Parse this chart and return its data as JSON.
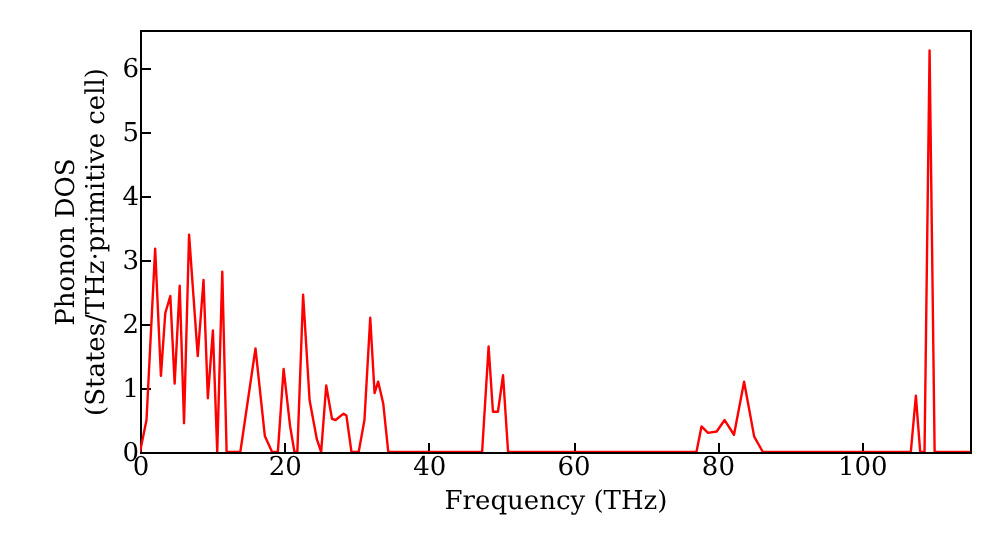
{
  "chart_data": {
    "type": "line",
    "xlabel": "Frequency (THz)",
    "ylabel": "Phonon DOS\n(States/THz·primitive cell)",
    "xlim": [
      0,
      115
    ],
    "ylim": [
      0,
      6.6
    ],
    "xticks": [
      0,
      20,
      40,
      60,
      80,
      100
    ],
    "yticks": [
      0,
      1,
      2,
      3,
      4,
      5,
      6
    ],
    "grid": false,
    "line_style": "solid",
    "series": [
      {
        "color": "#ff0000",
        "x": [
          0,
          0.9,
          2.1,
          2.9,
          3.5,
          4.2,
          4.8,
          5.5,
          6.1,
          6.8,
          8.0,
          8.8,
          9.4,
          10.1,
          10.7,
          11.4,
          12.0,
          13.9,
          16.0,
          17.3,
          18.3,
          19.1,
          19.9,
          20.8,
          21.4,
          21.8,
          22.6,
          23.5,
          24.5,
          25.1,
          25.8,
          26.6,
          27.1,
          28.2,
          28.6,
          29.3,
          30.3,
          31.1,
          31.9,
          32.5,
          33.0,
          33.7,
          34.4,
          47.4,
          48.3,
          48.9,
          49.6,
          50.3,
          51.0,
          77.1,
          77.8,
          78.7,
          79.9,
          81.0,
          82.3,
          83.7,
          85.1,
          86.3,
          106.8,
          107.5,
          108.1,
          108.7,
          109.4,
          110.1,
          115
        ],
        "values": [
          0,
          0.5,
          3.18,
          1.19,
          2.17,
          2.44,
          1.07,
          2.6,
          0.45,
          3.4,
          1.5,
          2.69,
          0.84,
          1.9,
          0,
          2.82,
          0,
          0,
          1.62,
          0.25,
          0,
          0,
          1.3,
          0.4,
          0,
          0,
          2.46,
          0.81,
          0.2,
          0,
          1.04,
          0.52,
          0.5,
          0.6,
          0.57,
          0,
          0,
          0.5,
          2.1,
          0.92,
          1.1,
          0.76,
          0,
          0,
          1.65,
          0.63,
          0.63,
          1.2,
          0,
          0,
          0.4,
          0.3,
          0.32,
          0.5,
          0.27,
          1.1,
          0.24,
          0,
          0,
          0.88,
          0,
          0,
          6.28,
          0,
          0
        ]
      }
    ]
  }
}
